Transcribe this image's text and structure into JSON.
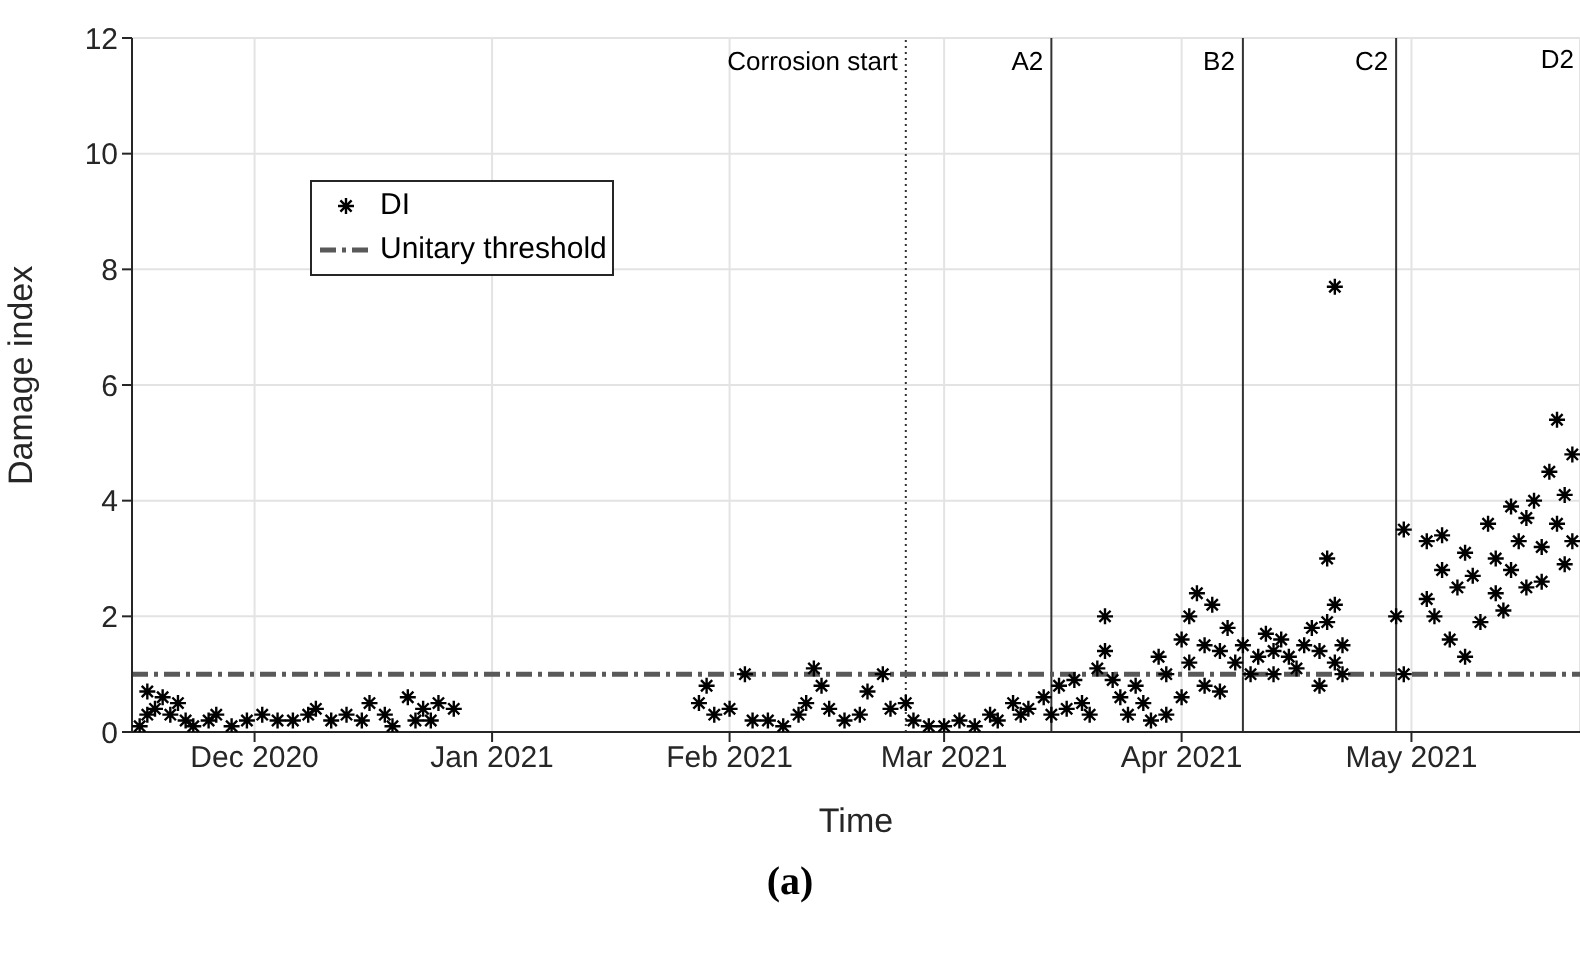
{
  "chart_data": {
    "type": "scatter",
    "xlabel": "Time",
    "ylabel": "Damage index",
    "annotations": [
      "(a)",
      "D2"
    ],
    "xlim": [
      "2020-11-15",
      "2021-05-23"
    ],
    "xticks": [
      {
        "value": "2020-12-01",
        "label": "Dec 2020"
      },
      {
        "value": "2021-01-01",
        "label": "Jan 2021"
      },
      {
        "value": "2021-02-01",
        "label": "Feb 2021"
      },
      {
        "value": "2021-03-01",
        "label": "Mar 2021"
      },
      {
        "value": "2021-04-01",
        "label": "Apr 2021"
      },
      {
        "value": "2021-05-01",
        "label": "May 2021"
      }
    ],
    "ylim": [
      0,
      12
    ],
    "yticks": [
      0,
      2,
      4,
      6,
      8,
      10,
      12
    ],
    "grid": true,
    "legend": "top left",
    "marker": "cross",
    "ref_lines": [
      {
        "axis": "x",
        "value": "2021-02-24",
        "label": "Corrosion start",
        "line_style": "dotted",
        "color": "#333333"
      },
      {
        "axis": "x",
        "value": "2021-03-15",
        "label": "A2",
        "line_style": "solid",
        "color": "#333333"
      },
      {
        "axis": "x",
        "value": "2021-04-09",
        "label": "B2",
        "line_style": "solid",
        "color": "#333333"
      },
      {
        "axis": "x",
        "value": "2021-04-29",
        "label": "C2",
        "line_style": "solid",
        "color": "#333333"
      }
    ],
    "series": [
      {
        "name": "DI",
        "color": "#000000",
        "x": [
          "2020-11-16",
          "2020-11-17",
          "2020-11-17",
          "2020-11-18",
          "2020-11-19",
          "2020-11-20",
          "2020-11-21",
          "2020-11-22",
          "2020-11-23",
          "2020-11-25",
          "2020-11-26",
          "2020-11-28",
          "2020-11-30",
          "2020-12-02",
          "2020-12-04",
          "2020-12-06",
          "2020-12-08",
          "2020-12-09",
          "2020-12-11",
          "2020-12-13",
          "2020-12-15",
          "2020-12-16",
          "2020-12-18",
          "2020-12-19",
          "2020-12-21",
          "2020-12-22",
          "2020-12-23",
          "2020-12-24",
          "2020-12-25",
          "2020-12-27",
          "2021-01-28",
          "2021-01-29",
          "2021-01-30",
          "2021-02-01",
          "2021-02-03",
          "2021-02-04",
          "2021-02-06",
          "2021-02-08",
          "2021-02-10",
          "2021-02-11",
          "2021-02-12",
          "2021-02-13",
          "2021-02-14",
          "2021-02-16",
          "2021-02-18",
          "2021-02-19",
          "2021-02-21",
          "2021-02-22",
          "2021-02-24",
          "2021-02-25",
          "2021-02-27",
          "2021-03-01",
          "2021-03-03",
          "2021-03-05",
          "2021-03-07",
          "2021-03-08",
          "2021-03-10",
          "2021-03-11",
          "2021-03-12",
          "2021-03-14",
          "2021-03-15",
          "2021-03-16",
          "2021-03-17",
          "2021-03-18",
          "2021-03-19",
          "2021-03-20",
          "2021-03-21",
          "2021-03-22",
          "2021-03-22",
          "2021-03-23",
          "2021-03-24",
          "2021-03-25",
          "2021-03-26",
          "2021-03-27",
          "2021-03-28",
          "2021-03-29",
          "2021-03-30",
          "2021-03-30",
          "2021-04-01",
          "2021-04-01",
          "2021-04-02",
          "2021-04-02",
          "2021-04-03",
          "2021-04-04",
          "2021-04-04",
          "2021-04-05",
          "2021-04-06",
          "2021-04-06",
          "2021-04-07",
          "2021-04-08",
          "2021-04-09",
          "2021-04-10",
          "2021-04-11",
          "2021-04-12",
          "2021-04-13",
          "2021-04-13",
          "2021-04-14",
          "2021-04-15",
          "2021-04-16",
          "2021-04-17",
          "2021-04-18",
          "2021-04-19",
          "2021-04-19",
          "2021-04-20",
          "2021-04-20",
          "2021-04-21",
          "2021-04-21",
          "2021-04-21",
          "2021-04-22",
          "2021-04-22",
          "2021-04-29",
          "2021-04-30",
          "2021-04-30",
          "2021-05-03",
          "2021-05-03",
          "2021-05-04",
          "2021-05-05",
          "2021-05-05",
          "2021-05-06",
          "2021-05-07",
          "2021-05-08",
          "2021-05-08",
          "2021-05-09",
          "2021-05-10",
          "2021-05-11",
          "2021-05-12",
          "2021-05-12",
          "2021-05-13",
          "2021-05-14",
          "2021-05-14",
          "2021-05-15",
          "2021-05-16",
          "2021-05-16",
          "2021-05-17",
          "2021-05-18",
          "2021-05-18",
          "2021-05-19",
          "2021-05-20",
          "2021-05-20",
          "2021-05-21",
          "2021-05-21",
          "2021-05-22",
          "2021-05-22"
        ],
        "values": [
          0.1,
          0.7,
          0.3,
          0.4,
          0.6,
          0.3,
          0.5,
          0.2,
          0.1,
          0.2,
          0.3,
          0.1,
          0.2,
          0.3,
          0.2,
          0.2,
          0.3,
          0.4,
          0.2,
          0.3,
          0.2,
          0.5,
          0.3,
          0.1,
          0.6,
          0.2,
          0.4,
          0.2,
          0.5,
          0.4,
          0.5,
          0.8,
          0.3,
          0.4,
          1.0,
          0.2,
          0.2,
          0.1,
          0.3,
          0.5,
          1.1,
          0.8,
          0.4,
          0.2,
          0.3,
          0.7,
          1.0,
          0.4,
          0.5,
          0.2,
          0.1,
          0.1,
          0.2,
          0.1,
          0.3,
          0.2,
          0.5,
          0.3,
          0.4,
          0.6,
          0.3,
          0.8,
          0.4,
          0.9,
          0.5,
          0.3,
          1.1,
          2.0,
          1.4,
          0.9,
          0.6,
          0.3,
          0.8,
          0.5,
          0.2,
          1.3,
          1.0,
          0.3,
          1.6,
          0.6,
          2.0,
          1.2,
          2.4,
          1.5,
          0.8,
          2.2,
          1.4,
          0.7,
          1.8,
          1.2,
          1.5,
          1.0,
          1.3,
          1.7,
          1.4,
          1.0,
          1.6,
          1.3,
          1.1,
          1.5,
          1.8,
          1.4,
          0.8,
          3.0,
          1.9,
          7.7,
          2.2,
          1.2,
          1.0,
          1.5,
          2.0,
          3.5,
          1.0,
          3.3,
          2.3,
          2.0,
          2.8,
          3.4,
          1.6,
          2.5,
          1.3,
          3.1,
          2.7,
          1.9,
          3.6,
          2.4,
          3.0,
          2.1,
          3.9,
          2.8,
          3.3,
          2.5,
          3.7,
          4.0,
          2.6,
          3.2,
          4.5,
          5.4,
          3.6,
          2.9,
          4.1,
          4.8,
          3.3
        ]
      },
      {
        "name": "Unitary threshold",
        "color": "#595959",
        "type": "line",
        "line_style": "dashdot",
        "marker": "none",
        "x": [
          "2020-11-15",
          "2021-05-23"
        ],
        "values": [
          1,
          1
        ]
      }
    ]
  }
}
